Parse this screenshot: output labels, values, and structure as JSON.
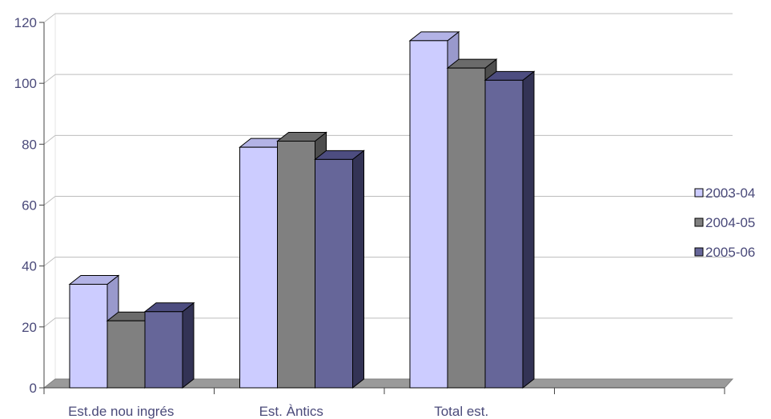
{
  "chart_data": {
    "type": "bar",
    "title": "",
    "xlabel": "",
    "ylabel": "",
    "ylim": [
      0,
      120
    ],
    "yticks": [
      0,
      20,
      40,
      60,
      80,
      100,
      120
    ],
    "grid": true,
    "legend_position": "right",
    "categories": [
      "Est.de nou ingrés",
      "Est. Àntics",
      "Total est."
    ],
    "series": [
      {
        "name": "2003-04",
        "color": "#ccccff",
        "values": [
          34,
          79,
          114
        ]
      },
      {
        "name": "2004-05",
        "color": "#808080",
        "values": [
          22,
          81,
          105
        ]
      },
      {
        "name": "2005-06",
        "color": "#666699",
        "values": [
          25,
          75,
          101
        ]
      }
    ]
  }
}
